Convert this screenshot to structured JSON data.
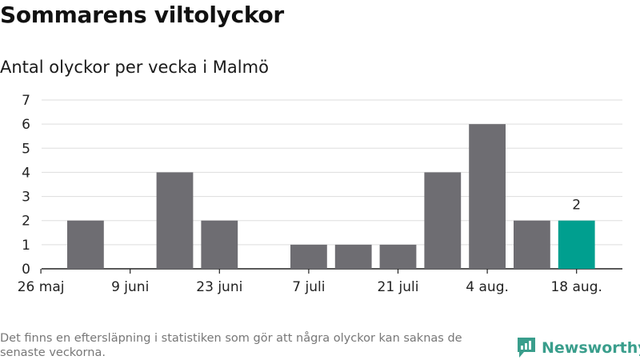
{
  "title": "Sommarens viltolyckor",
  "subtitle": "Antal olyckor per vecka i Malmö",
  "footer": "Det finns en eftersläpning i statistiken som gör att några olyckor kan saknas de senaste veckorna.",
  "brand": "Newsworthy",
  "colors": {
    "bar": "#6e6d72",
    "highlight": "#009f8f",
    "grid": "#dddddd",
    "axis": "#222222",
    "brand": "#3a9e8c"
  },
  "chart_data": {
    "type": "bar",
    "x": [
      "2025-05-26",
      "2025-06-02",
      "2025-06-09",
      "2025-06-16",
      "2025-06-23",
      "2025-06-30",
      "2025-07-07",
      "2025-07-14",
      "2025-07-21",
      "2025-07-28",
      "2025-08-04",
      "2025-08-11",
      "2025-08-18"
    ],
    "values": [
      0,
      2,
      0,
      4,
      2,
      0,
      1,
      1,
      1,
      4,
      6,
      2,
      2
    ],
    "highlight_index": 12,
    "data_labels": [
      {
        "index": 12,
        "text": "2"
      }
    ],
    "x_tick_labels": [
      {
        "index": 0,
        "label": "26 maj"
      },
      {
        "index": 2,
        "label": "9 juni"
      },
      {
        "index": 4,
        "label": "23 juni"
      },
      {
        "index": 6,
        "label": "7 juli"
      },
      {
        "index": 8,
        "label": "21 juli"
      },
      {
        "index": 10,
        "label": "4 aug."
      },
      {
        "index": 12,
        "label": "18 aug."
      }
    ],
    "y_ticks": [
      0,
      1,
      2,
      3,
      4,
      5,
      6,
      7
    ],
    "ylim": [
      0,
      7
    ],
    "grid": true,
    "legend": "none"
  }
}
